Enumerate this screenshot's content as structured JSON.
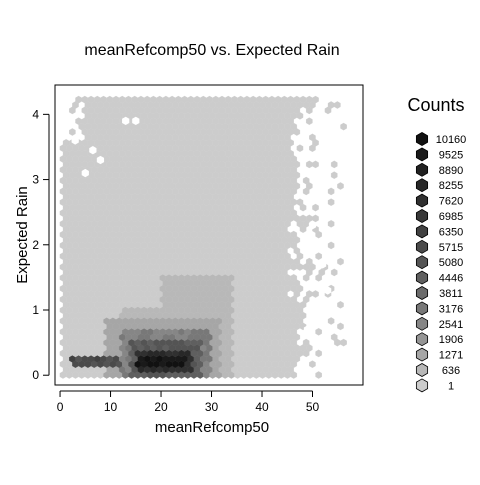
{
  "chart_data": {
    "type": "hexbin",
    "title": "meanRefcomp50 vs. Expected Rain",
    "xlabel": "meanRefcomp50",
    "ylabel": "Expected Rain",
    "xlim": [
      -1,
      60
    ],
    "ylim": [
      -0.15,
      4.45
    ],
    "xticks": [
      0,
      10,
      20,
      30,
      40,
      50
    ],
    "yticks": [
      0,
      1,
      2,
      3,
      4
    ],
    "legend": {
      "title": "Counts",
      "placement": "right",
      "levels": [
        "10160",
        "9525",
        "8890",
        "8255",
        "7620",
        "6985",
        "6350",
        "5715",
        "5080",
        "4446",
        "3811",
        "3176",
        "2541",
        "1906",
        "1271",
        "636",
        "1"
      ],
      "colors": [
        "#111111",
        "#1a1a1a",
        "#212121",
        "#282828",
        "#303030",
        "#383838",
        "#414141",
        "#4a4a4a",
        "#545454",
        "#5f5f5f",
        "#6b6b6b",
        "#787878",
        "#868686",
        "#959595",
        "#a6a6a6",
        "#b8b8b8",
        "#cccccc"
      ]
    },
    "point_color": "#cccccc",
    "regions": {
      "main_body": {
        "x": [
          0,
          47
        ],
        "y": [
          0,
          4.2
        ]
      },
      "dense_core": {
        "x": [
          10,
          30
        ],
        "y": [
          0,
          0.8
        ]
      },
      "peak": {
        "x": [
          15,
          25
        ],
        "y": [
          0.1,
          0.3
        ]
      }
    }
  }
}
